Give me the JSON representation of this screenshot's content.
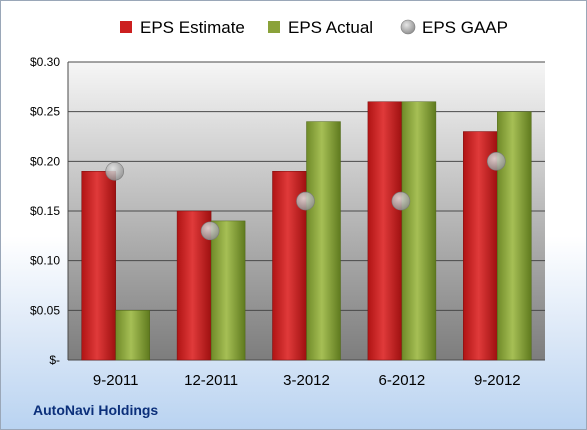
{
  "company": "AutoNavi Holdings",
  "colors": {
    "estimate": "#cc1f1f",
    "actual": "#8aa23a",
    "gaap": "#a9a9a9",
    "plot_top": "#f6f6f6",
    "plot_bottom": "#7d7d7d"
  },
  "chart_data": {
    "type": "bar",
    "categories": [
      "9-2011",
      "12-2011",
      "3-2012",
      "6-2012",
      "9-2012"
    ],
    "series": [
      {
        "name": "EPS Estimate",
        "kind": "bar",
        "values": [
          0.19,
          0.15,
          0.19,
          0.26,
          0.23
        ]
      },
      {
        "name": "EPS Actual",
        "kind": "bar",
        "values": [
          0.05,
          0.14,
          0.24,
          0.26,
          0.25
        ]
      },
      {
        "name": "EPS GAAP",
        "kind": "marker",
        "values": [
          0.19,
          0.13,
          0.16,
          0.16,
          0.2
        ]
      }
    ],
    "ylim": [
      0,
      0.3
    ],
    "yticks": [
      0,
      0.05,
      0.1,
      0.15,
      0.2,
      0.25,
      0.3
    ],
    "ytick_labels": [
      "$-",
      "$0.05",
      "$0.10",
      "$0.15",
      "$0.20",
      "$0.25",
      "$0.30"
    ],
    "grid": true,
    "legend_position": "top"
  }
}
